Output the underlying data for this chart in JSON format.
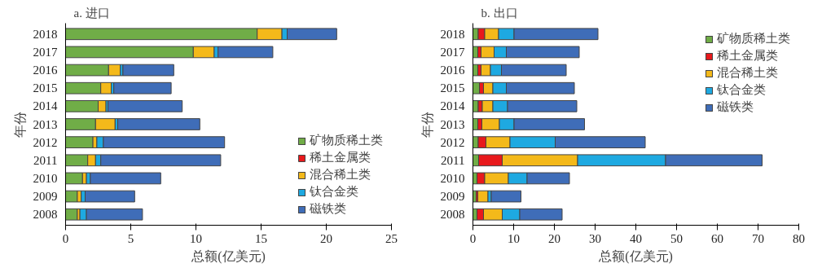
{
  "chart_data": [
    {
      "type": "bar",
      "title": "a. 进口",
      "orientation": "horizontal",
      "stacked": true,
      "xlabel": "总额(亿美元)",
      "ylabel": "年份",
      "legend": "bottom right",
      "grid": false,
      "categories": [
        "2018",
        "2017",
        "2016",
        "2015",
        "2014",
        "2013",
        "2012",
        "2011",
        "2010",
        "2009",
        "2008"
      ],
      "xlim": [
        0,
        25
      ],
      "xticks": [
        0,
        5,
        10,
        15,
        20,
        25
      ],
      "series": [
        {
          "name": "矿物质稀土类",
          "color": "#70ad47",
          "values": [
            14.7,
            9.8,
            3.3,
            2.7,
            2.5,
            2.3,
            2.1,
            1.7,
            1.3,
            0.9,
            0.9
          ]
        },
        {
          "name": "稀土金属类",
          "color": "#e8191c",
          "values": [
            null,
            null,
            null,
            null,
            null,
            null,
            null,
            null,
            null,
            null,
            null
          ]
        },
        {
          "name": "混合稀土类",
          "color": "#f4b91a",
          "values": [
            1.9,
            1.6,
            0.9,
            0.8,
            0.6,
            1.5,
            0.3,
            0.6,
            0.3,
            0.3,
            0.2
          ]
        },
        {
          "name": "钛合金类",
          "color": "#1ea9e1",
          "values": [
            0.4,
            0.3,
            0.2,
            0.2,
            0.15,
            0.2,
            0.5,
            0.4,
            0.3,
            0.3,
            0.5
          ]
        },
        {
          "name": "磁铁类",
          "color": "#3f6db8",
          "values": [
            3.8,
            4.2,
            3.9,
            4.4,
            5.7,
            6.3,
            9.3,
            9.2,
            5.4,
            3.8,
            4.3
          ]
        }
      ]
    },
    {
      "type": "bar",
      "title": "b. 出口",
      "orientation": "horizontal",
      "stacked": true,
      "xlabel": "总额(亿美元)",
      "ylabel": "年份",
      "legend": "top right",
      "grid": false,
      "categories": [
        "2018",
        "2017",
        "2016",
        "2015",
        "2014",
        "2013",
        "2012",
        "2011",
        "2010",
        "2009",
        "2008"
      ],
      "xlim": [
        0,
        80
      ],
      "xticks": [
        0,
        10,
        20,
        30,
        40,
        50,
        60,
        70,
        80
      ],
      "series": [
        {
          "name": "矿物质稀土类",
          "color": "#70ad47",
          "values": [
            1.3,
            1.2,
            1.2,
            1.6,
            1.3,
            1.2,
            1.3,
            1.4,
            1.0,
            0.8,
            1.0
          ]
        },
        {
          "name": "稀土金属类",
          "color": "#e8191c",
          "values": [
            1.6,
            0.8,
            0.8,
            1.0,
            1.0,
            1.0,
            1.9,
            5.8,
            1.9,
            0.4,
            1.6
          ]
        },
        {
          "name": "混合稀土类",
          "color": "#f4b91a",
          "values": [
            3.4,
            3.2,
            2.3,
            2.3,
            2.6,
            4.3,
            5.9,
            18.5,
            5.8,
            2.5,
            4.6
          ]
        },
        {
          "name": "钛合金类",
          "color": "#1ea9e1",
          "values": [
            3.8,
            3.0,
            2.7,
            3.3,
            3.6,
            3.6,
            11.1,
            21.6,
            4.6,
            0.8,
            4.3
          ]
        },
        {
          "name": "磁铁类",
          "color": "#3f6db8",
          "values": [
            20.6,
            17.9,
            15.9,
            16.7,
            17.0,
            17.3,
            22.1,
            23.7,
            10.4,
            7.3,
            10.4
          ]
        }
      ]
    }
  ]
}
